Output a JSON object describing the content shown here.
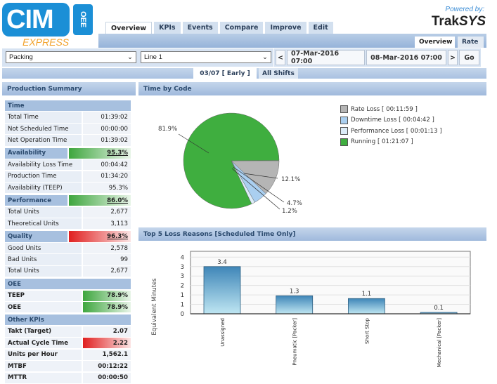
{
  "logo": {
    "main": "CIM",
    "side": "OEE",
    "sub": "EXPRESS"
  },
  "powered": {
    "label": "Powered by:",
    "brand_a": "Trak",
    "brand_b": "SYS"
  },
  "tabs": [
    "Overview",
    "KPIs",
    "Events",
    "Compare",
    "Improve",
    "Edit"
  ],
  "subtabs": [
    "Overview",
    "Rate"
  ],
  "filters": {
    "area": "Packing",
    "line": "Line 1",
    "prev": "<",
    "start": "07-Mar-2016 07:00",
    "end": "08-Mar-2016 07:00",
    "next": ">",
    "go": "Go"
  },
  "shifts": {
    "current": "03/07 [ Early ]",
    "all": "All Shifts"
  },
  "summary": {
    "title": "Production Summary",
    "rows": [
      {
        "label": "Time",
        "type": "hdronly"
      },
      {
        "label": "Total Time",
        "value": "01:39:02"
      },
      {
        "label": "Not Scheduled Time",
        "value": "00:00:00"
      },
      {
        "label": "Net Operation Time",
        "value": "01:39:02"
      },
      {
        "label": "Availability",
        "value": "95.3%",
        "type": "sec"
      },
      {
        "label": "Availability Loss Time",
        "value": "00:04:42"
      },
      {
        "label": "Production Time",
        "value": "01:34:20"
      },
      {
        "label": "Availability (TEEP)",
        "value": "95.3%"
      },
      {
        "label": "Performance",
        "value": "86.0%",
        "type": "sec"
      },
      {
        "label": "Total Units",
        "value": "2,677"
      },
      {
        "label": "Theoretical Units",
        "value": "3,113"
      },
      {
        "label": "Quality",
        "value": "96.3%",
        "type": "sec red"
      },
      {
        "label": "Good Units",
        "value": "2,578"
      },
      {
        "label": "Bad Units",
        "value": "99"
      },
      {
        "label": "Total Units",
        "value": "2,677"
      },
      {
        "label": "OEE",
        "type": "hdronly"
      },
      {
        "label": "TEEP",
        "value": "78.9%",
        "type": "bold green"
      },
      {
        "label": "OEE",
        "value": "78.9%",
        "type": "bold green"
      },
      {
        "label": "Other KPIs",
        "type": "hdronly"
      },
      {
        "label": "Takt (Target)",
        "value": "2.07",
        "type": "bold"
      },
      {
        "label": "Actual Cycle Time",
        "value": "2.22",
        "type": "bold red"
      },
      {
        "label": "Units per Hour",
        "value": "1,562.1",
        "type": "bold"
      },
      {
        "label": "MTBF",
        "value": "00:12:22",
        "type": "bold"
      },
      {
        "label": "MTTR",
        "value": "00:00:50",
        "type": "bold"
      }
    ]
  },
  "chart_data": [
    {
      "type": "pie",
      "title": "Time by Code",
      "slices": [
        {
          "name": "Rate Loss",
          "duration": "00:11:59",
          "percent": 12.1,
          "label": "12.1%",
          "color": "#b5b5b5"
        },
        {
          "name": "Downtime Loss",
          "duration": "00:04:42",
          "percent": 4.7,
          "label": "4.7%",
          "color": "#aacff0"
        },
        {
          "name": "Performance Loss",
          "duration": "00:01:13",
          "percent": 1.2,
          "label": "1.2%",
          "color": "#dcecf8"
        },
        {
          "name": "Running",
          "duration": "01:21:07",
          "percent": 81.9,
          "label": "81.9%",
          "color": "#3fae3f"
        }
      ],
      "legend": "right"
    },
    {
      "type": "bar",
      "title": "Top 5 Loss Reasons [Scheduled Time Only]",
      "ylabel": "Equivalent Minutes",
      "categories": [
        "Unassigned",
        "Pneumatic [Packer]",
        "Short Stop",
        "Mechanical [Packer]"
      ],
      "values": [
        3.4,
        1.3,
        1.1,
        0.1
      ],
      "data_labels": [
        "3.4",
        "1.3",
        "1.1",
        "0.1"
      ],
      "ylim": [
        0,
        4.5
      ],
      "yticks": [
        0,
        0.68,
        1.36,
        2.04,
        2.72,
        3.4,
        4.08
      ],
      "ytick_labels": [
        "0",
        "1",
        "1",
        "2",
        "3",
        "3",
        "4"
      ],
      "grid": true,
      "color": "#3f86b8"
    }
  ]
}
